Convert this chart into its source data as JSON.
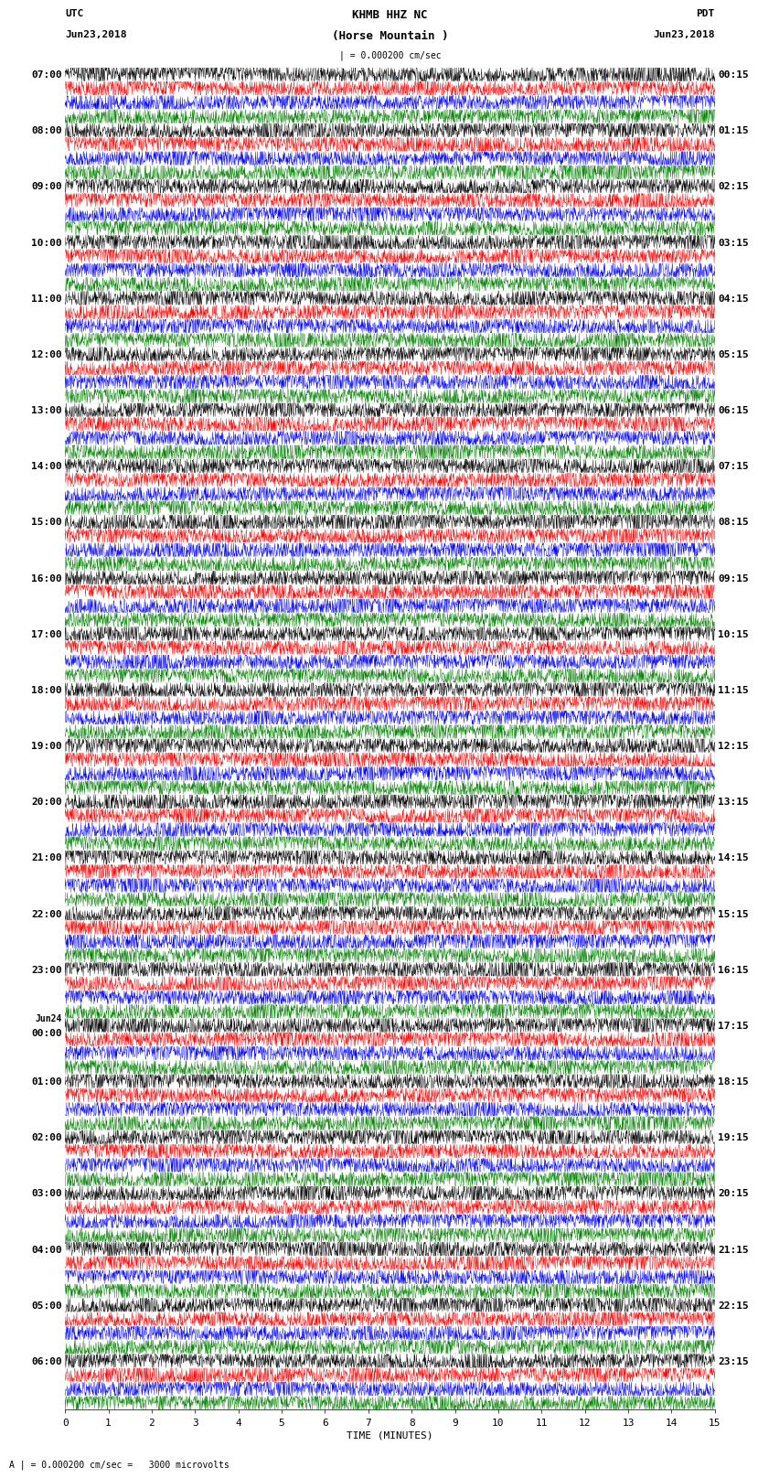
{
  "title_line1": "KHMB HHZ NC",
  "title_line2": "(Horse Mountain )",
  "title_scale": "| = 0.000200 cm/sec",
  "left_label": "UTC",
  "left_date": "Jun23,2018",
  "right_label": "PDT",
  "right_date": "Jun23,2018",
  "bottom_label": "TIME (MINUTES)",
  "bottom_note": "A | = 0.000200 cm/sec =   3000 microvolts",
  "xlabel_ticks": [
    0,
    1,
    2,
    3,
    4,
    5,
    6,
    7,
    8,
    9,
    10,
    11,
    12,
    13,
    14,
    15
  ],
  "colors": [
    "black",
    "red",
    "blue",
    "green"
  ],
  "left_times": [
    "07:00",
    "08:00",
    "09:00",
    "10:00",
    "11:00",
    "12:00",
    "13:00",
    "14:00",
    "15:00",
    "16:00",
    "17:00",
    "18:00",
    "19:00",
    "20:00",
    "21:00",
    "22:00",
    "23:00",
    "Jun24\n00:00",
    "01:00",
    "02:00",
    "03:00",
    "04:00",
    "05:00",
    "06:00"
  ],
  "right_times": [
    "00:15",
    "01:15",
    "02:15",
    "03:15",
    "04:15",
    "05:15",
    "06:15",
    "07:15",
    "08:15",
    "09:15",
    "10:15",
    "11:15",
    "12:15",
    "13:15",
    "14:15",
    "15:15",
    "16:15",
    "17:15",
    "18:15",
    "19:15",
    "20:15",
    "21:15",
    "22:15",
    "23:15"
  ],
  "n_hours": 24,
  "n_traces_per_hour": 4,
  "n_cols": 2000,
  "fig_width": 8.5,
  "fig_height": 16.13,
  "dpi": 100,
  "background_color": "white",
  "font_size_title": 9,
  "font_size_labels": 8,
  "font_size_ticks": 8,
  "font_size_time": 8
}
